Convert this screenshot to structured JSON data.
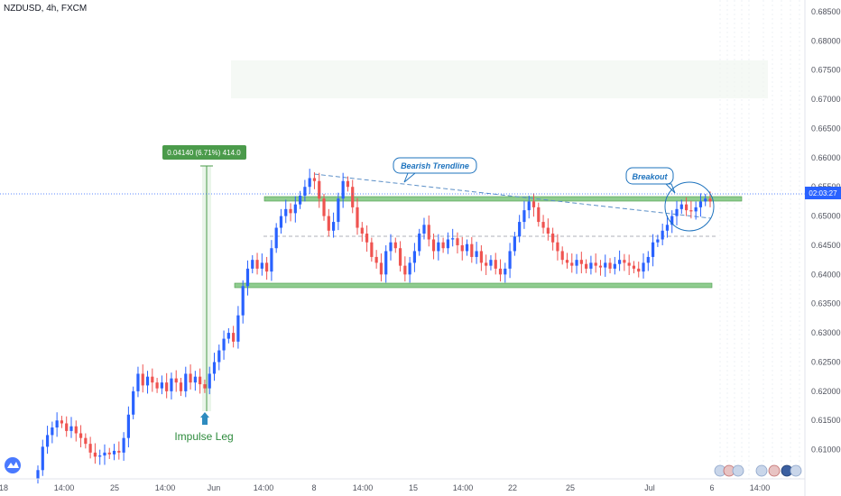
{
  "header": {
    "symbol": "NZDUSD, 4h, FXCM"
  },
  "price_tag": {
    "label": "02:03:27",
    "color": "#2962ff"
  },
  "colors": {
    "up": "#2962ff",
    "down": "#ef5350",
    "zone": "#8fcc8f",
    "annotation": "#1e73be",
    "measure": "#4b9b4b"
  },
  "annotations": {
    "measure": "0.04140 (6.71%) 414.0",
    "impulse": "Impulse Leg",
    "trendline": "Bearish Trendline",
    "breakout": "Breakout"
  },
  "chart_data": {
    "type": "candlestick",
    "symbol": "NZDUSD",
    "timeframe": "4h",
    "ylim": [
      0.605,
      0.687
    ],
    "y_ticks": [
      "0.68500",
      "0.68000",
      "0.67500",
      "0.67000",
      "0.66500",
      "0.66000",
      "0.65500",
      "0.65000",
      "0.64500",
      "0.64000",
      "0.63500",
      "0.63000",
      "0.62500",
      "0.62000",
      "0.61500",
      "0.61000"
    ],
    "x_ticks": [
      "18",
      "14:00",
      "25",
      "14:00",
      "Jun",
      "14:00",
      "8",
      "14:00",
      "15",
      "14:00",
      "22",
      "25",
      "Jul",
      "6",
      "14:00"
    ],
    "closes": [
      0.6065,
      0.6105,
      0.6125,
      0.6138,
      0.615,
      0.6145,
      0.6132,
      0.614,
      0.6128,
      0.612,
      0.611,
      0.6095,
      0.6088,
      0.609,
      0.6095,
      0.6092,
      0.6098,
      0.6095,
      0.612,
      0.616,
      0.62,
      0.623,
      0.621,
      0.6225,
      0.6215,
      0.6205,
      0.6215,
      0.62,
      0.6222,
      0.6215,
      0.62,
      0.623,
      0.6215,
      0.6225,
      0.6212,
      0.6205,
      0.623,
      0.625,
      0.627,
      0.629,
      0.63,
      0.6285,
      0.633,
      0.638,
      0.641,
      0.6425,
      0.641,
      0.642,
      0.6405,
      0.6445,
      0.648,
      0.65,
      0.6512,
      0.6505,
      0.652,
      0.6535,
      0.655,
      0.6565,
      0.656,
      0.653,
      0.65,
      0.6475,
      0.649,
      0.653,
      0.656,
      0.655,
      0.6515,
      0.648,
      0.647,
      0.6455,
      0.643,
      0.642,
      0.64,
      0.644,
      0.6455,
      0.6445,
      0.6415,
      0.64,
      0.642,
      0.644,
      0.647,
      0.6485,
      0.646,
      0.644,
      0.6455,
      0.6445,
      0.646,
      0.6462,
      0.645,
      0.644,
      0.6452,
      0.643,
      0.644,
      0.642,
      0.6415,
      0.6425,
      0.641,
      0.64,
      0.641,
      0.644,
      0.6465,
      0.649,
      0.651,
      0.6525,
      0.6515,
      0.649,
      0.648,
      0.647,
      0.6455,
      0.644,
      0.6425,
      0.642,
      0.6415,
      0.6425,
      0.6418,
      0.641,
      0.642,
      0.6415,
      0.6412,
      0.642,
      0.641,
      0.6418,
      0.6425,
      0.642,
      0.6415,
      0.641,
      0.6405,
      0.642,
      0.643,
      0.6455,
      0.646,
      0.6475,
      0.6485,
      0.65,
      0.6512,
      0.652,
      0.651,
      0.6508,
      0.6515,
      0.6525,
      0.653,
      0.6525
    ]
  }
}
